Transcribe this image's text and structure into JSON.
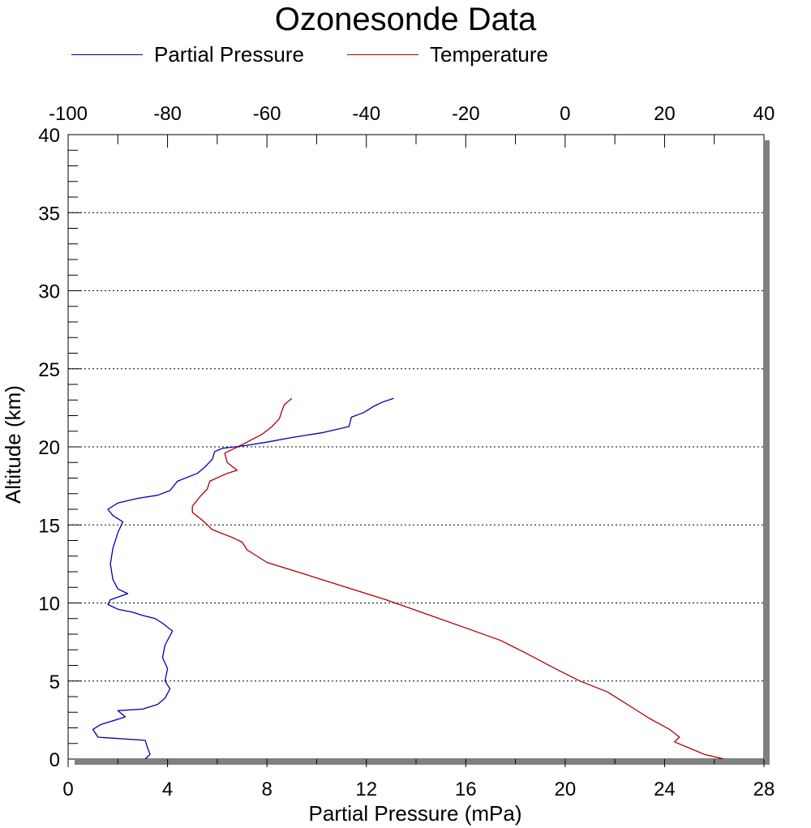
{
  "chart_data": {
    "type": "line",
    "title": "Ozonesonde Data",
    "xlabel": "Partial Pressure (mPa)",
    "ylabel": "Altitude (km)",
    "x_bottom_range": [
      0,
      28
    ],
    "x_bottom_ticks": [
      "0",
      "4",
      "8",
      "12",
      "16",
      "20",
      "24",
      "28"
    ],
    "x_top_range": [
      -100,
      40
    ],
    "x_top_ticks": [
      "-100",
      "-80",
      "-60",
      "-40",
      "-20",
      "0",
      "20",
      "40"
    ],
    "ylim": [
      0,
      40
    ],
    "y_ticks": [
      "0",
      "5",
      "10",
      "15",
      "20",
      "25",
      "30",
      "35",
      "40"
    ],
    "grid": "horizontal dotted",
    "legend_position": "top",
    "series": [
      {
        "name": "Partial Pressure",
        "color": "#0000aa",
        "axis": "bottom",
        "points": [
          [
            3.1,
            0.0
          ],
          [
            3.3,
            0.3
          ],
          [
            3.2,
            0.7
          ],
          [
            3.1,
            1.2
          ],
          [
            1.2,
            1.4
          ],
          [
            1.0,
            1.9
          ],
          [
            1.3,
            2.2
          ],
          [
            1.7,
            2.4
          ],
          [
            2.3,
            2.7
          ],
          [
            2.0,
            3.1
          ],
          [
            3.0,
            3.2
          ],
          [
            3.6,
            3.5
          ],
          [
            3.9,
            3.9
          ],
          [
            4.1,
            4.5
          ],
          [
            3.9,
            5.0
          ],
          [
            4.0,
            5.8
          ],
          [
            3.8,
            6.5
          ],
          [
            3.9,
            7.3
          ],
          [
            4.2,
            8.2
          ],
          [
            3.8,
            8.7
          ],
          [
            3.5,
            9.0
          ],
          [
            3.0,
            9.2
          ],
          [
            2.6,
            9.4
          ],
          [
            2.0,
            9.6
          ],
          [
            1.6,
            9.9
          ],
          [
            1.7,
            10.2
          ],
          [
            2.4,
            10.6
          ],
          [
            2.0,
            10.9
          ],
          [
            1.8,
            11.5
          ],
          [
            1.7,
            12.5
          ],
          [
            1.8,
            13.5
          ],
          [
            2.0,
            14.5
          ],
          [
            2.2,
            15.2
          ],
          [
            1.8,
            15.6
          ],
          [
            1.6,
            16.0
          ],
          [
            2.0,
            16.4
          ],
          [
            2.8,
            16.7
          ],
          [
            3.6,
            16.9
          ],
          [
            4.1,
            17.2
          ],
          [
            4.4,
            17.8
          ],
          [
            5.2,
            18.3
          ],
          [
            5.5,
            18.7
          ],
          [
            5.8,
            19.2
          ],
          [
            5.9,
            19.7
          ],
          [
            6.2,
            19.9
          ],
          [
            7.2,
            20.1
          ],
          [
            8.0,
            20.3
          ],
          [
            9.0,
            20.6
          ],
          [
            10.2,
            20.9
          ],
          [
            11.3,
            21.3
          ],
          [
            11.4,
            21.9
          ],
          [
            11.9,
            22.2
          ],
          [
            12.3,
            22.6
          ],
          [
            12.7,
            22.9
          ],
          [
            13.1,
            23.1
          ]
        ]
      },
      {
        "name": "Temperature",
        "color": "#aa0000",
        "axis": "top",
        "points": [
          [
            32.0,
            0.0
          ],
          [
            28.0,
            0.3
          ],
          [
            25.0,
            0.7
          ],
          [
            22.0,
            1.1
          ],
          [
            23.0,
            1.4
          ],
          [
            21.0,
            1.9
          ],
          [
            17.0,
            2.6
          ],
          [
            13.0,
            3.4
          ],
          [
            8.5,
            4.3
          ],
          [
            3.0,
            5.0
          ],
          [
            -2.0,
            5.8
          ],
          [
            -8.0,
            6.8
          ],
          [
            -13.0,
            7.6
          ],
          [
            -20.0,
            8.4
          ],
          [
            -28.0,
            9.3
          ],
          [
            -36.0,
            10.2
          ],
          [
            -44.0,
            11.0
          ],
          [
            -52.0,
            11.8
          ],
          [
            -60.0,
            12.6
          ],
          [
            -64.0,
            13.4
          ],
          [
            -65.0,
            13.9
          ],
          [
            -67.0,
            14.2
          ],
          [
            -71.0,
            14.7
          ],
          [
            -73.0,
            15.3
          ],
          [
            -75.0,
            15.8
          ],
          [
            -75.0,
            16.2
          ],
          [
            -73.5,
            16.8
          ],
          [
            -72.0,
            17.3
          ],
          [
            -71.5,
            17.8
          ],
          [
            -68.0,
            18.3
          ],
          [
            -66.0,
            18.5
          ],
          [
            -68.0,
            19.0
          ],
          [
            -68.5,
            19.6
          ],
          [
            -66.5,
            19.9
          ],
          [
            -64.0,
            20.3
          ],
          [
            -61.0,
            20.8
          ],
          [
            -59.0,
            21.3
          ],
          [
            -57.5,
            21.8
          ],
          [
            -57.0,
            22.3
          ],
          [
            -56.5,
            22.7
          ],
          [
            -55.0,
            23.1
          ]
        ]
      }
    ]
  }
}
